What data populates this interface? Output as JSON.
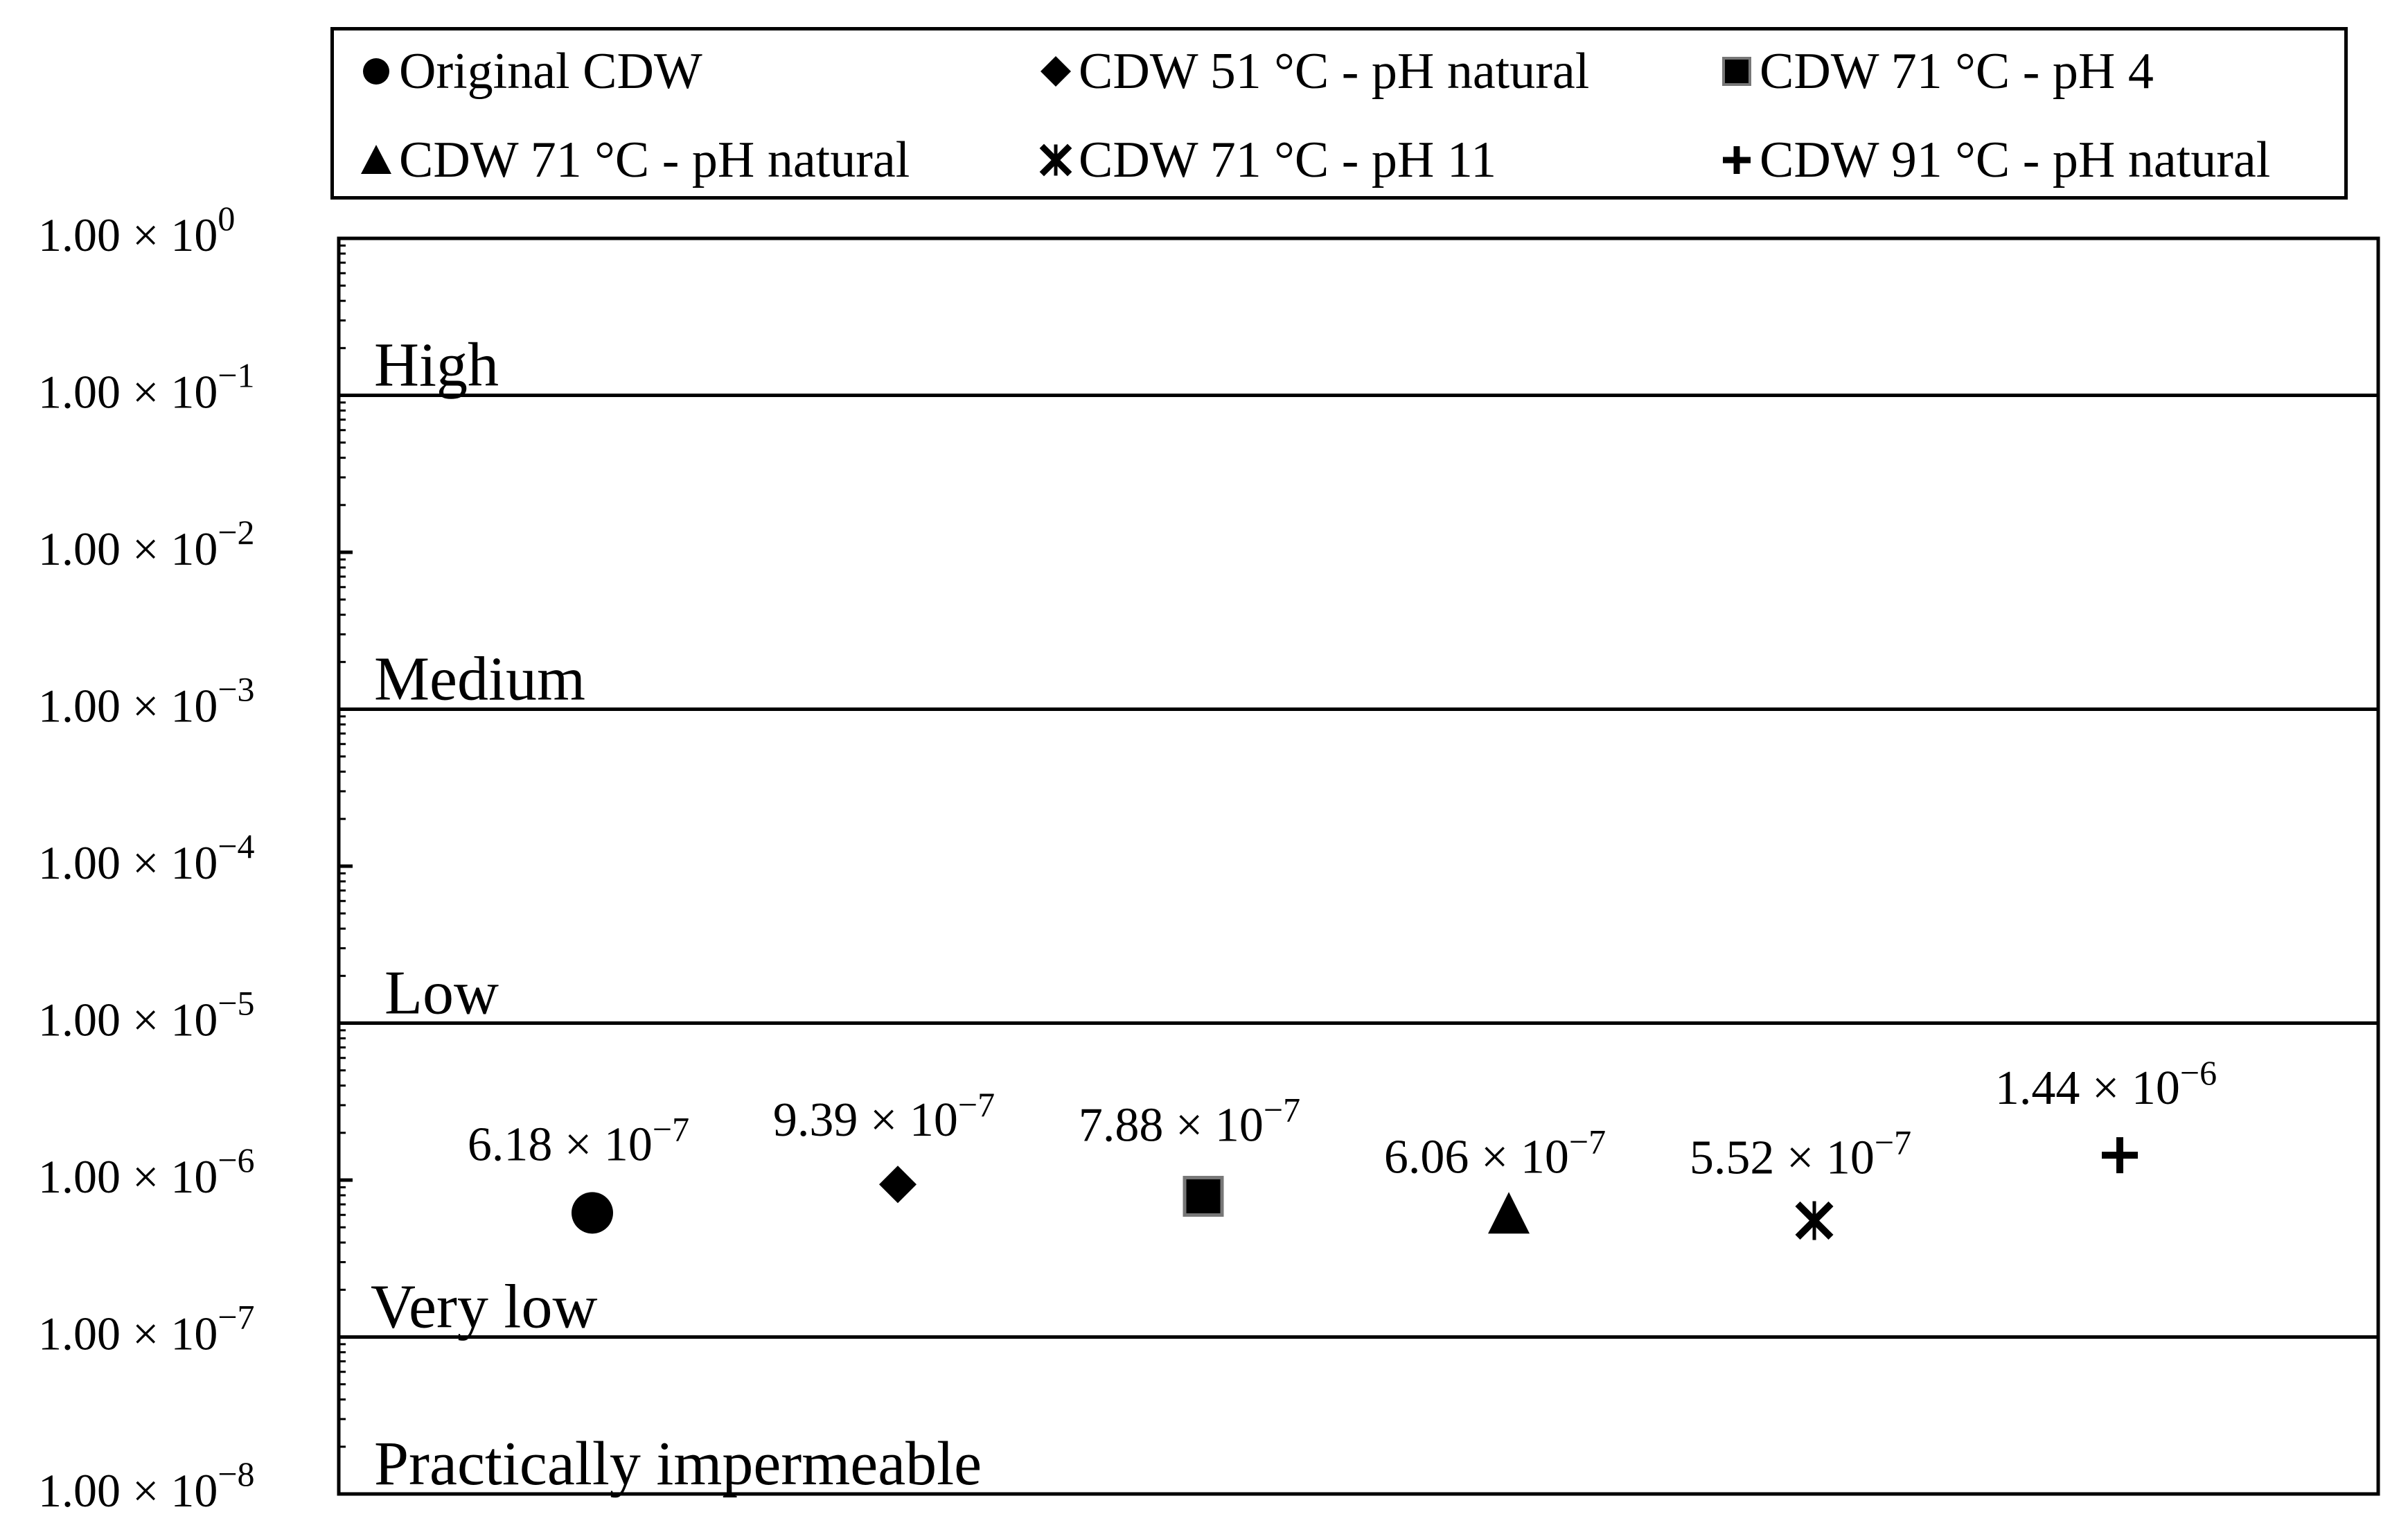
{
  "chart_data": {
    "type": "scatter",
    "title": "",
    "xlabel": "",
    "ylabel": "",
    "y_scale": "log",
    "ylim": [
      1e-08,
      1
    ],
    "grid": false,
    "legend_position": "top",
    "y_ticks": [
      {
        "value": 1,
        "mantissa": "1.00 × 10",
        "exp": "0"
      },
      {
        "value": 0.1,
        "mantissa": "1.00 × 10",
        "exp": "−1"
      },
      {
        "value": 0.01,
        "mantissa": "1.00 × 10",
        "exp": "−2"
      },
      {
        "value": 0.001,
        "mantissa": "1.00 × 10",
        "exp": "−3"
      },
      {
        "value": 0.0001,
        "mantissa": "1.00 × 10",
        "exp": "−4"
      },
      {
        "value": 1e-05,
        "mantissa": "1.00 × 10",
        "exp": "−5"
      },
      {
        "value": 1e-06,
        "mantissa": "1.00 × 10",
        "exp": "−6"
      },
      {
        "value": 1e-07,
        "mantissa": "1.00 × 10",
        "exp": "−7"
      },
      {
        "value": 1e-08,
        "mantissa": "1.00 × 10",
        "exp": "−8"
      }
    ],
    "zone_boundaries": [
      0.1,
      0.001,
      1e-05,
      1e-07
    ],
    "zones": [
      {
        "label": "High",
        "upper": 1,
        "lower": 0.1
      },
      {
        "label": "Medium",
        "upper": 0.1,
        "lower": 0.001
      },
      {
        "label": "Low",
        "upper": 0.001,
        "lower": 1e-05
      },
      {
        "label": "Very low",
        "upper": 1e-05,
        "lower": 1e-07
      },
      {
        "label": "Practically impermeable",
        "upper": 1e-07,
        "lower": 1e-08
      }
    ],
    "series": [
      {
        "name": "Original CDW",
        "marker": "circle",
        "value": 6.18e-07,
        "label_mantissa": "6.18 × 10",
        "label_exp": "−7"
      },
      {
        "name": "CDW 51 °C - pH natural",
        "marker": "diamond",
        "value": 9.39e-07,
        "label_mantissa": "9.39 × 10",
        "label_exp": "−7"
      },
      {
        "name": "CDW 71 °C - pH 4",
        "marker": "square",
        "value": 7.88e-07,
        "label_mantissa": "7.88 × 10",
        "label_exp": "−7"
      },
      {
        "name": "CDW 71 °C - pH natural",
        "marker": "triangle",
        "value": 6.06e-07,
        "label_mantissa": "6.06 × 10",
        "label_exp": "−7"
      },
      {
        "name": "CDW 71 °C - pH 11",
        "marker": "asterisk",
        "value": 5.52e-07,
        "label_mantissa": "5.52 × 10",
        "label_exp": "−7"
      },
      {
        "name": "CDW 91 °C - pH natural",
        "marker": "plus",
        "value": 1.44e-06,
        "label_mantissa": "1.44 × 10",
        "label_exp": "−6"
      }
    ]
  }
}
